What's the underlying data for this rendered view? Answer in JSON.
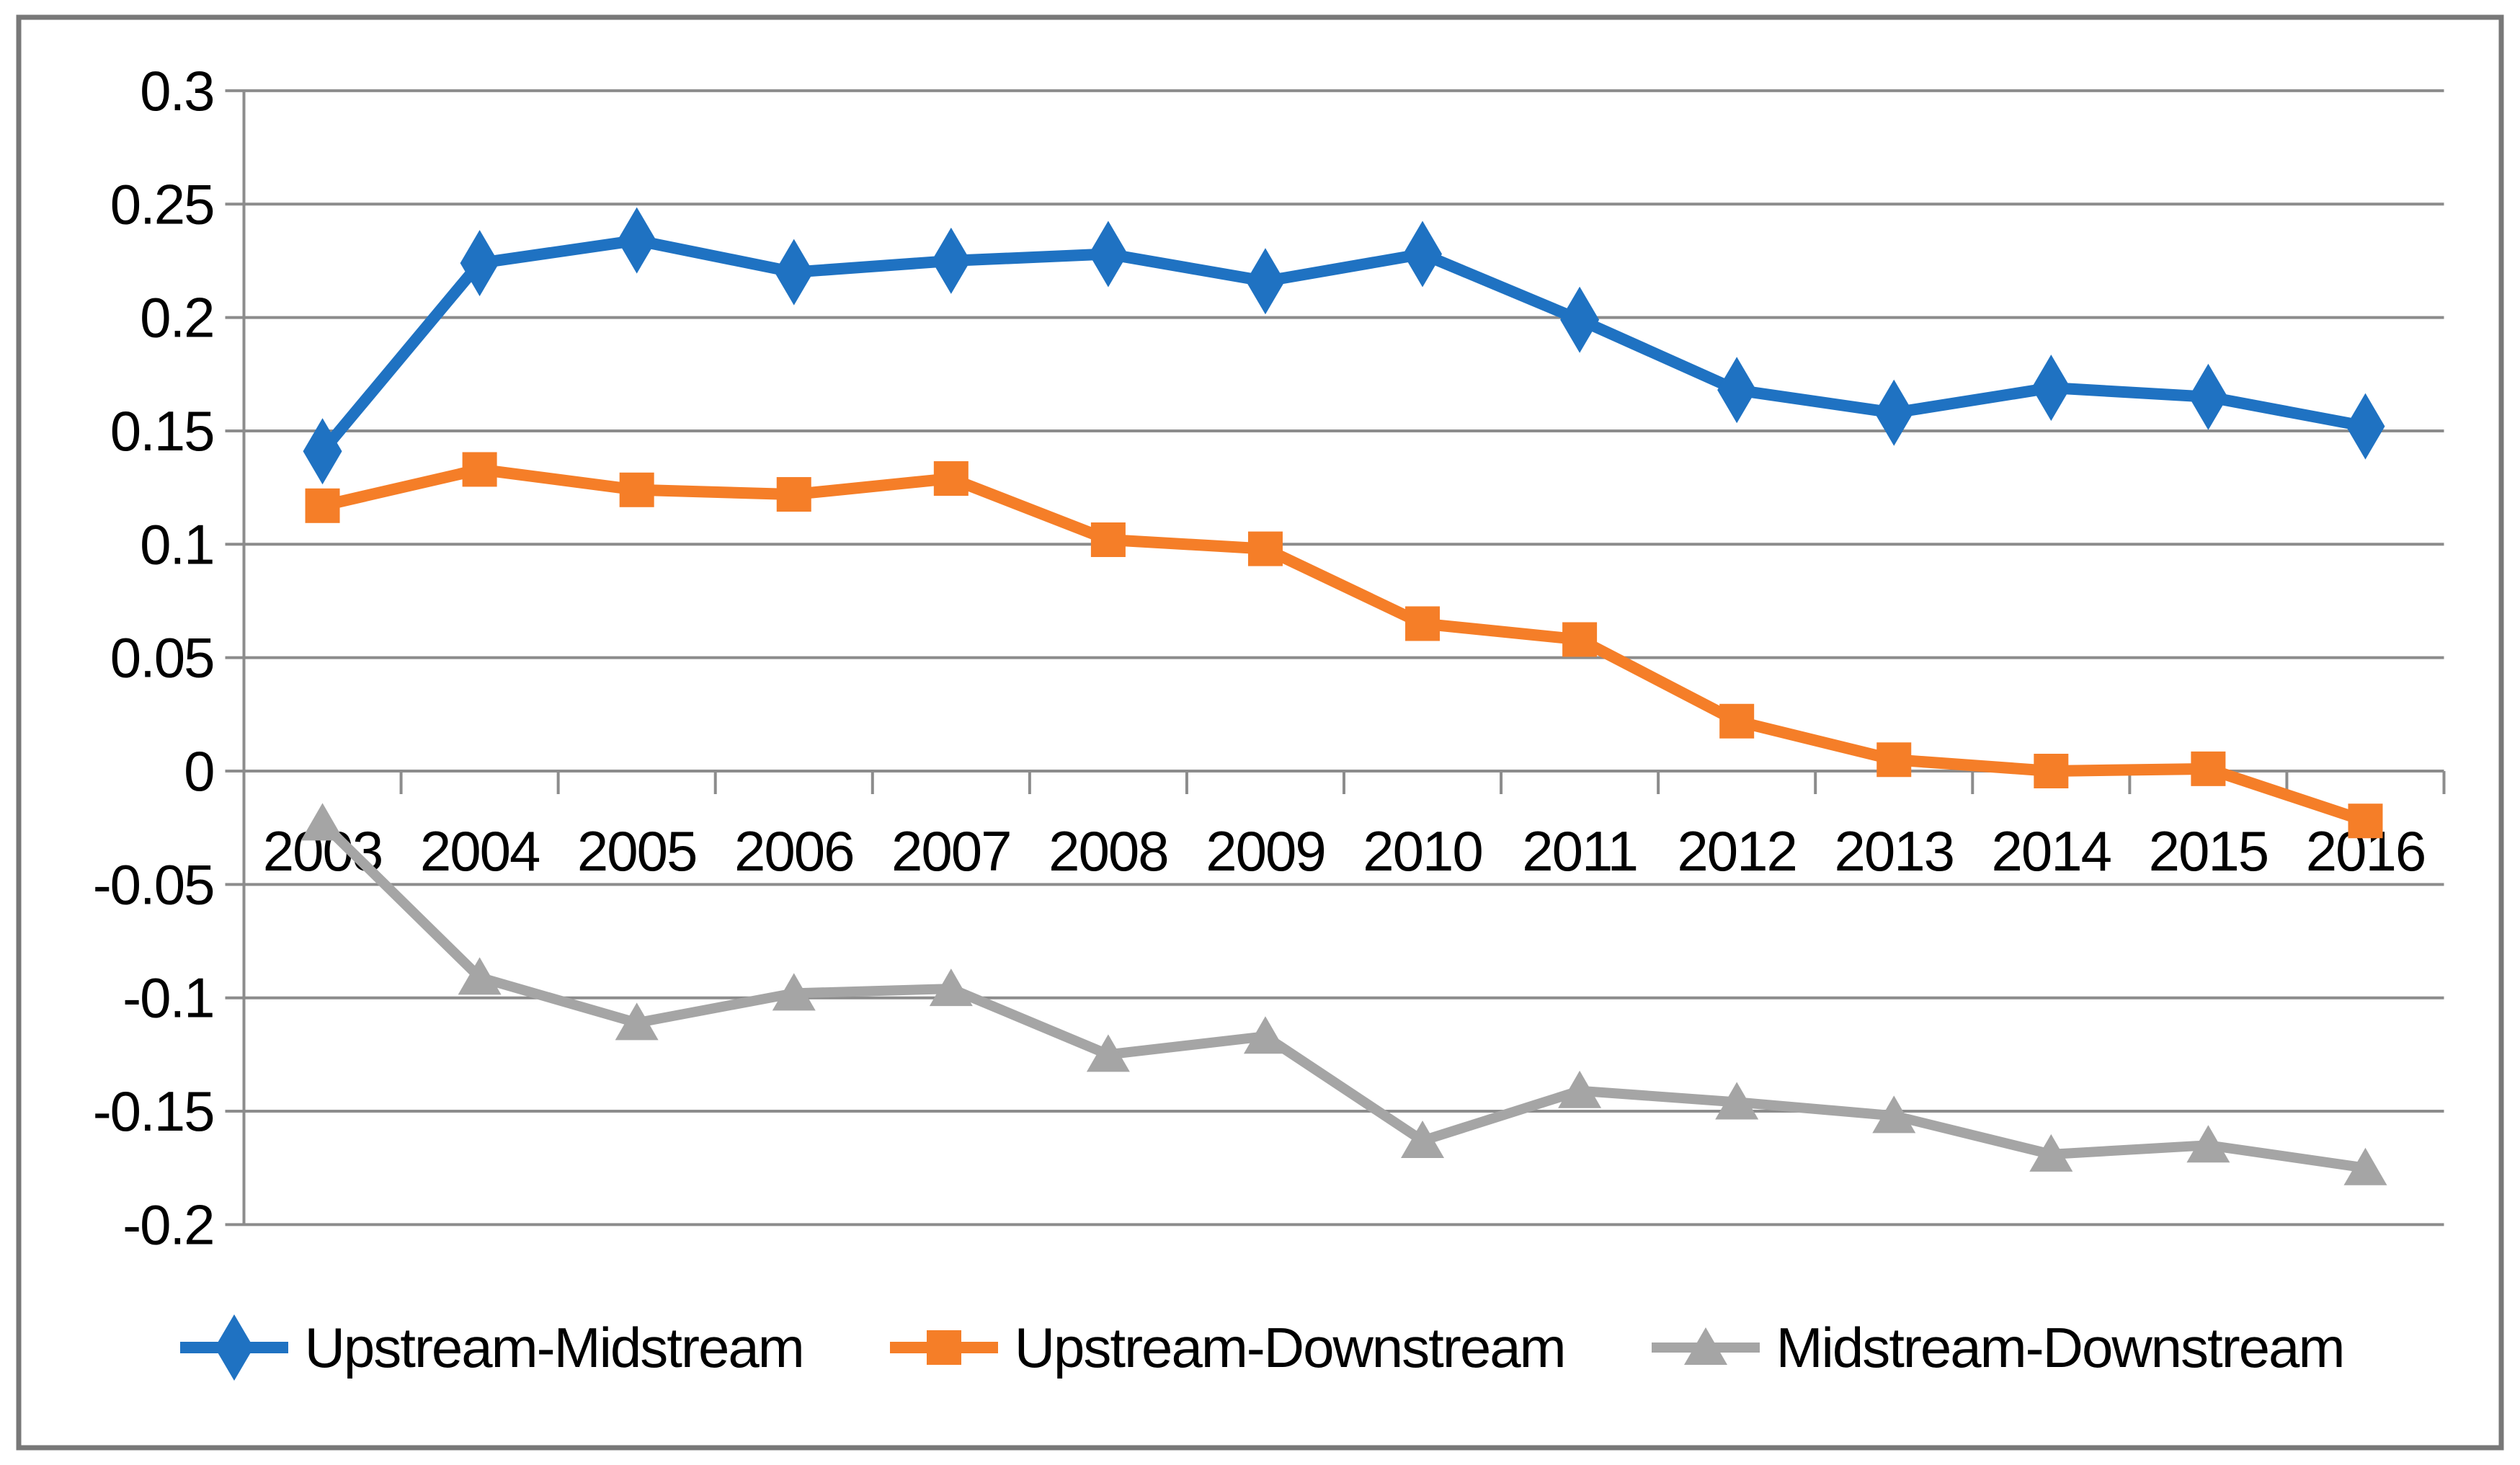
{
  "chart_data": {
    "type": "line",
    "title": "",
    "xlabel": "",
    "ylabel": "",
    "categories": [
      "2003",
      "2004",
      "2005",
      "2006",
      "2007",
      "2008",
      "2009",
      "2010",
      "2011",
      "2012",
      "2013",
      "2014",
      "2015",
      "2016"
    ],
    "series": [
      {
        "name": "Upstream-Midstream",
        "marker": "diamond",
        "color": "#1F72C2",
        "values": [
          0.141,
          0.224,
          0.234,
          0.22,
          0.225,
          0.228,
          0.216,
          0.228,
          0.199,
          0.168,
          0.158,
          0.169,
          0.165,
          0.152
        ]
      },
      {
        "name": "Upstream-Downstream",
        "marker": "square",
        "color": "#F57E28",
        "values": [
          0.117,
          0.133,
          0.124,
          0.122,
          0.129,
          0.102,
          0.098,
          0.065,
          0.058,
          0.022,
          0.005,
          0.0,
          0.001,
          -0.022
        ]
      },
      {
        "name": "Midstream-Downstream",
        "marker": "triangle",
        "color": "#A5A5A5",
        "values": [
          -0.023,
          -0.091,
          -0.111,
          -0.098,
          -0.096,
          -0.125,
          -0.117,
          -0.163,
          -0.141,
          -0.146,
          -0.152,
          -0.169,
          -0.165,
          -0.175
        ]
      }
    ],
    "y_ticks": [
      {
        "value": 0.3,
        "label": "0.3"
      },
      {
        "value": 0.25,
        "label": "0.25"
      },
      {
        "value": 0.2,
        "label": "0.2"
      },
      {
        "value": 0.15,
        "label": "0.15"
      },
      {
        "value": 0.1,
        "label": "0.1"
      },
      {
        "value": 0.05,
        "label": "0.05"
      },
      {
        "value": 0,
        "label": "0"
      },
      {
        "value": -0.05,
        "label": "-0.05"
      },
      {
        "value": -0.1,
        "label": "-0.1"
      },
      {
        "value": -0.15,
        "label": "-0.15"
      },
      {
        "value": -0.2,
        "label": "-0.2"
      }
    ],
    "ylim": [
      -0.2,
      0.3
    ],
    "grid": "horizontal",
    "legend_position": "bottom"
  },
  "styles": {
    "grid_color": "#8C8C8C",
    "axis_color": "#8C8C8C",
    "text_color": "#000000",
    "border_color": "#787878",
    "background": "#FFFFFF"
  }
}
